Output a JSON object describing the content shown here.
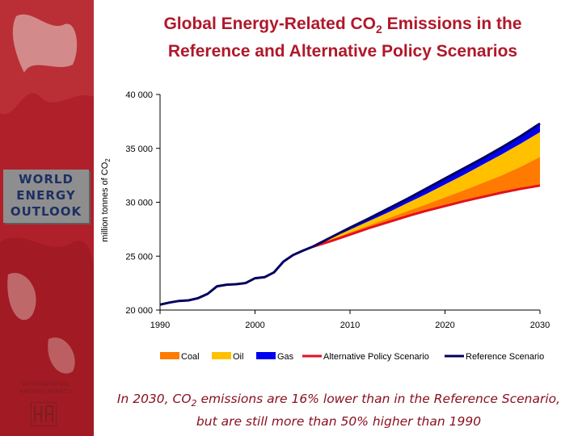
{
  "colors": {
    "title": "#b0182a",
    "coal": "#ff7a00",
    "oil": "#ffc000",
    "gas": "#0000ee",
    "alternative": "#e3101f",
    "reference": "#000060",
    "sidebar": "#b0202a"
  },
  "title": {
    "line1_prefix": "Global Energy-Related CO",
    "line1_sub": "2",
    "line1_suffix": " Emissions in the",
    "line2": "Reference and Alternative Policy Scenarios"
  },
  "sidebar": {
    "logo_lines": [
      "WORLD",
      "ENERGY",
      "OUTLOOK"
    ],
    "agency_lines": [
      "INTERNATIONAL",
      "ENERGY AGENCY"
    ]
  },
  "caption": {
    "prefix": "In 2030, CO",
    "sub": "2",
    "suffix": " emissions are 16% lower  than in the Reference Scenario,",
    "line2": "but are still more than 50% higher than 1990"
  },
  "chart_data": {
    "type": "area",
    "title": "Global Energy-Related CO2 Emissions in the Reference and Alternative Policy Scenarios",
    "xlabel": "",
    "ylabel": "million tonnes of CO2",
    "ylabel_prefix": "million tonnes of CO",
    "ylabel_sub": "2",
    "xlim": [
      1990,
      2030
    ],
    "ylim": [
      20000,
      40000
    ],
    "x_ticks": [
      1990,
      2000,
      2010,
      2020,
      2030
    ],
    "x_tick_labels": [
      "1990",
      "2000",
      "2010",
      "2020",
      "2030"
    ],
    "y_ticks": [
      20000,
      25000,
      30000,
      35000,
      40000
    ],
    "y_tick_labels": [
      "20 000",
      "25 000",
      "30 000",
      "35 000",
      "40 000"
    ],
    "grid": false,
    "legend_position": "bottom",
    "legend": [
      {
        "key": "coal",
        "label": "Coal",
        "kind": "area"
      },
      {
        "key": "oil",
        "label": "Oil",
        "kind": "area"
      },
      {
        "key": "gas",
        "label": "Gas",
        "kind": "area"
      },
      {
        "key": "alternative",
        "label": "Alternative Policy Scenario",
        "kind": "line"
      },
      {
        "key": "reference",
        "label": "Reference Scenario",
        "kind": "line"
      }
    ],
    "historical": {
      "x": [
        1990,
        1991,
        1992,
        1993,
        1994,
        1995,
        1996,
        1997,
        1998,
        1999,
        2000,
        2001,
        2002,
        2003,
        2004,
        2005,
        2006
      ],
      "values": [
        20500,
        20700,
        20850,
        20900,
        21100,
        21500,
        22200,
        22350,
        22400,
        22500,
        22950,
        23050,
        23500,
        24500,
        25100,
        25500,
        25850
      ]
    },
    "projection_x": [
      2006,
      2008,
      2010,
      2012,
      2014,
      2016,
      2018,
      2020,
      2022,
      2024,
      2026,
      2028,
      2030
    ],
    "series": [
      {
        "name": "Alternative Policy Scenario",
        "values": [
          25850,
          26400,
          27000,
          27600,
          28150,
          28700,
          29200,
          29650,
          30100,
          30500,
          30900,
          31250,
          31550
        ]
      },
      {
        "name": "Coal (top of band)",
        "values": [
          25850,
          26500,
          27200,
          27850,
          28500,
          29150,
          29800,
          30450,
          31100,
          31800,
          32500,
          33300,
          34200
        ]
      },
      {
        "name": "Oil (top of band)",
        "values": [
          25850,
          26650,
          27450,
          28250,
          29050,
          29900,
          30750,
          31650,
          32550,
          33500,
          34450,
          35450,
          36500
        ]
      },
      {
        "name": "Reference Scenario (Gas top)",
        "values": [
          25850,
          26750,
          27650,
          28500,
          29400,
          30300,
          31250,
          32200,
          33150,
          34100,
          35100,
          36150,
          37300
        ]
      }
    ]
  }
}
